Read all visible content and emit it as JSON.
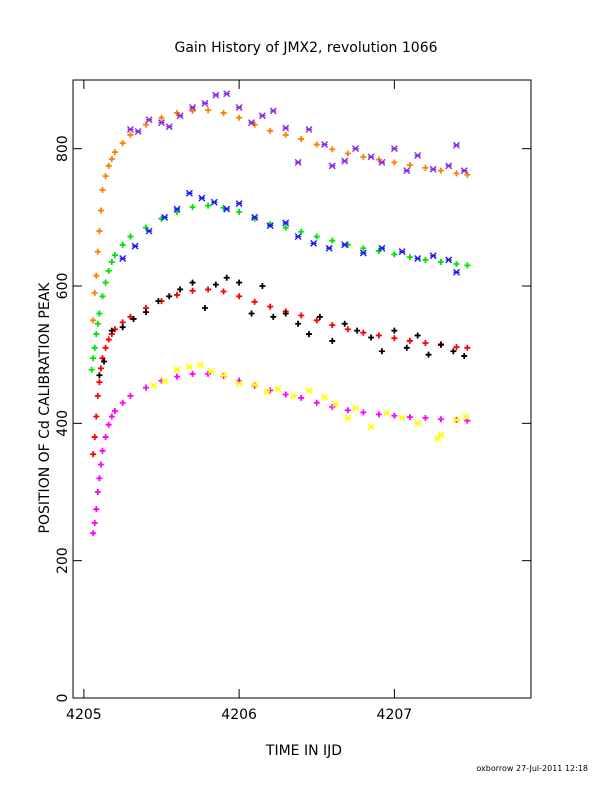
{
  "chart_data": {
    "type": "scatter",
    "title": "Gain History of JMX2, revolution 1066",
    "xlabel": "TIME IN IJD",
    "ylabel": "POSITION OF Cd CALIBRATION PEAK",
    "xlim": [
      4204.93,
      4207.88
    ],
    "ylim": [
      0,
      900
    ],
    "x_ticks": [
      "4205",
      "4206",
      "4207"
    ],
    "y_ticks": [
      "0",
      "200",
      "400",
      "600",
      "800"
    ],
    "grid": false,
    "footer": "oxborrow 27-Jul-2011 12:18",
    "series": [
      {
        "color": "#ff7f00",
        "marker": "plus",
        "x": [
          4205.06,
          4205.07,
          4205.08,
          4205.09,
          4205.1,
          4205.11,
          4205.12,
          4205.14,
          4205.16,
          4205.18,
          4205.2,
          4205.25,
          4205.3,
          4205.4,
          4205.5,
          4205.6,
          4205.7,
          4205.8,
          4205.9,
          4206.0,
          4206.1,
          4206.2,
          4206.3,
          4206.4,
          4206.5,
          4206.6,
          4206.7,
          4206.8,
          4206.9,
          4207.0,
          4207.1,
          4207.2,
          4207.3,
          4207.4,
          4207.47
        ],
        "y": [
          550,
          590,
          615,
          650,
          680,
          710,
          740,
          760,
          775,
          785,
          795,
          808,
          820,
          835,
          845,
          852,
          855,
          856,
          852,
          845,
          835,
          826,
          820,
          814,
          806,
          799,
          793,
          788,
          784,
          780,
          776,
          772,
          768,
          764,
          762
        ]
      },
      {
        "color": "#8a2be2",
        "marker": "star",
        "x": [
          4205.3,
          4205.35,
          4205.42,
          4205.5,
          4205.55,
          4205.62,
          4205.7,
          4205.78,
          4205.85,
          4205.92,
          4206.0,
          4206.08,
          4206.15,
          4206.22,
          4206.3,
          4206.38,
          4206.45,
          4206.55,
          4206.6,
          4206.68,
          4206.75,
          4206.85,
          4206.92,
          4207.0,
          4207.08,
          4207.15,
          4207.25,
          4207.35,
          4207.4,
          4207.45
        ],
        "y": [
          828,
          825,
          842,
          838,
          832,
          848,
          860,
          866,
          878,
          880,
          860,
          838,
          848,
          855,
          830,
          780,
          828,
          806,
          775,
          782,
          800,
          788,
          780,
          800,
          768,
          790,
          770,
          775,
          805,
          768
        ]
      },
      {
        "color": "#00e400",
        "marker": "plus",
        "x": [
          4205.05,
          4205.06,
          4205.07,
          4205.08,
          4205.09,
          4205.1,
          4205.12,
          4205.14,
          4205.16,
          4205.18,
          4205.2,
          4205.25,
          4205.3,
          4205.4,
          4205.5,
          4205.6,
          4205.7,
          4205.8,
          4205.9,
          4206.0,
          4206.1,
          4206.2,
          4206.3,
          4206.4,
          4206.5,
          4206.6,
          4206.7,
          4206.8,
          4206.9,
          4207.0,
          4207.1,
          4207.2,
          4207.3,
          4207.4,
          4207.47
        ],
        "y": [
          478,
          495,
          510,
          530,
          545,
          560,
          585,
          605,
          622,
          635,
          645,
          660,
          672,
          685,
          698,
          708,
          715,
          717,
          714,
          708,
          698,
          690,
          685,
          679,
          672,
          666,
          660,
          655,
          651,
          646,
          642,
          638,
          635,
          632,
          630
        ]
      },
      {
        "color": "#1a1aff",
        "marker": "star",
        "x": [
          4205.25,
          4205.33,
          4205.42,
          4205.52,
          4205.6,
          4205.68,
          4205.76,
          4205.84,
          4205.92,
          4206.0,
          4206.1,
          4206.2,
          4206.3,
          4206.38,
          4206.48,
          4206.58,
          4206.68,
          4206.8,
          4206.92,
          4207.05,
          4207.15,
          4207.25,
          4207.35,
          4207.4
        ],
        "y": [
          640,
          658,
          680,
          700,
          712,
          735,
          728,
          722,
          712,
          720,
          700,
          688,
          692,
          672,
          662,
          655,
          660,
          648,
          655,
          650,
          640,
          644,
          638,
          620
        ]
      },
      {
        "color": "#ff0000",
        "marker": "plus",
        "x": [
          4205.06,
          4205.07,
          4205.08,
          4205.09,
          4205.1,
          4205.11,
          4205.12,
          4205.14,
          4205.16,
          4205.18,
          4205.2,
          4205.25,
          4205.3,
          4205.4,
          4205.5,
          4205.6,
          4205.7,
          4205.8,
          4205.9,
          4206.0,
          4206.1,
          4206.2,
          4206.3,
          4206.4,
          4206.5,
          4206.6,
          4206.7,
          4206.8,
          4206.9,
          4207.0,
          4207.1,
          4207.2,
          4207.3,
          4207.4,
          4207.47
        ],
        "y": [
          355,
          380,
          410,
          440,
          460,
          480,
          495,
          510,
          522,
          530,
          537,
          547,
          555,
          568,
          578,
          587,
          593,
          595,
          592,
          585,
          577,
          570,
          563,
          557,
          550,
          543,
          537,
          532,
          528,
          524,
          520,
          517,
          514,
          511,
          510
        ]
      },
      {
        "color": "#000000",
        "marker": "plus",
        "x": [
          4205.1,
          4205.13,
          4205.18,
          4205.25,
          4205.32,
          4205.4,
          4205.48,
          4205.55,
          4205.62,
          4205.7,
          4205.78,
          4205.85,
          4205.92,
          4206.0,
          4206.08,
          4206.15,
          4206.22,
          4206.3,
          4206.38,
          4206.45,
          4206.52,
          4206.6,
          4206.68,
          4206.76,
          4206.85,
          4206.92,
          4207.0,
          4207.08,
          4207.15,
          4207.22,
          4207.3,
          4207.38,
          4207.45
        ],
        "y": [
          470,
          490,
          535,
          540,
          552,
          562,
          578,
          585,
          595,
          605,
          568,
          602,
          612,
          605,
          560,
          600,
          555,
          560,
          545,
          530,
          555,
          520,
          545,
          535,
          525,
          505,
          535,
          510,
          528,
          500,
          515,
          505,
          498
        ]
      },
      {
        "color": "#ff00ff",
        "marker": "plus",
        "x": [
          4205.06,
          4205.07,
          4205.08,
          4205.09,
          4205.1,
          4205.11,
          4205.12,
          4205.14,
          4205.16,
          4205.18,
          4205.2,
          4205.25,
          4205.3,
          4205.4,
          4205.5,
          4205.6,
          4205.7,
          4205.8,
          4205.9,
          4206.0,
          4206.1,
          4206.2,
          4206.3,
          4206.4,
          4206.5,
          4206.6,
          4206.7,
          4206.8,
          4206.9,
          4207.0,
          4207.1,
          4207.2,
          4207.3,
          4207.4,
          4207.47
        ],
        "y": [
          240,
          255,
          275,
          300,
          320,
          340,
          360,
          380,
          398,
          410,
          418,
          430,
          440,
          452,
          462,
          468,
          472,
          472,
          469,
          462,
          455,
          448,
          442,
          437,
          430,
          424,
          419,
          416,
          413,
          411,
          409,
          408,
          406,
          405,
          404
        ]
      },
      {
        "color": "#ffff00",
        "marker": "star",
        "x": [
          4205.45,
          4205.52,
          4205.6,
          4205.68,
          4205.75,
          4205.82,
          4205.9,
          4206.0,
          4206.1,
          4206.18,
          4206.25,
          4206.35,
          4206.45,
          4206.55,
          4206.62,
          4206.7,
          4206.75,
          4206.85,
          4206.95,
          4207.05,
          4207.15,
          4207.28,
          4207.3,
          4207.4,
          4207.46
        ],
        "y": [
          455,
          462,
          478,
          482,
          485,
          476,
          470,
          458,
          456,
          446,
          450,
          440,
          448,
          438,
          428,
          408,
          422,
          395,
          415,
          408,
          400,
          378,
          383,
          405,
          410
        ]
      }
    ]
  }
}
